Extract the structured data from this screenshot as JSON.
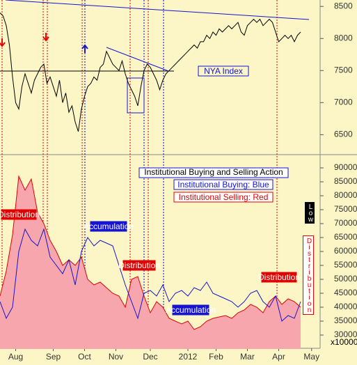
{
  "chart_data": [
    {
      "type": "line",
      "annotations": [
        "NYA Index"
      ],
      "x": [
        0,
        1,
        2,
        3,
        4,
        5,
        6,
        7,
        8,
        9,
        10,
        11,
        12,
        13,
        14,
        15,
        16,
        17,
        18,
        19,
        20,
        21,
        22,
        23,
        24,
        25,
        26,
        27,
        28,
        29,
        30,
        31,
        32,
        33,
        34,
        35,
        36,
        37,
        38,
        39,
        40,
        41,
        42,
        43,
        44,
        45,
        46,
        47,
        48,
        49,
        50,
        51,
        52,
        53,
        54,
        55,
        56,
        57,
        58,
        59,
        60,
        61,
        62,
        63,
        64,
        65,
        66,
        67,
        68,
        69,
        70,
        71,
        72,
        73,
        74,
        75,
        76,
        77,
        78,
        79,
        80,
        81,
        82,
        83,
        84,
        85,
        86,
        87,
        88,
        89,
        90,
        91,
        92,
        93,
        94,
        95,
        96
      ],
      "series": [
        {
          "name": "NYA Index",
          "color": "#000000",
          "values": [
            8400,
            8350,
            8200,
            7900,
            7400,
            7000,
            6900,
            7250,
            7450,
            7300,
            7150,
            7350,
            7450,
            7550,
            7600,
            7300,
            7400,
            7250,
            7100,
            7350,
            7000,
            7150,
            6850,
            6950,
            6700,
            6550,
            6900,
            7100,
            7250,
            7300,
            7400,
            7350,
            7550,
            7600,
            7800,
            7700,
            7600,
            7550,
            7500,
            7650,
            7450,
            7300,
            7200,
            7100,
            6950,
            7250,
            7500,
            7600,
            7550,
            7450,
            7350,
            7200,
            7350,
            7450,
            7500,
            7550,
            7600,
            7650,
            7700,
            7750,
            7800,
            7850,
            7900,
            7850,
            7950,
            7950,
            8050,
            8000,
            8100,
            8050,
            8150,
            8100,
            8150,
            8200,
            8150,
            8200,
            8250,
            8100,
            8050,
            8200,
            8250,
            8300,
            8250,
            8300,
            8200,
            8250,
            8300,
            8250,
            8100,
            7950,
            8000,
            8050,
            8000,
            8050,
            7950,
            8050,
            8100
          ]
        }
      ],
      "xlim": [
        0,
        102
      ],
      "ylim": [
        6200,
        8600
      ],
      "yticks": [
        6500,
        7000,
        7500,
        8000,
        8500
      ]
    },
    {
      "type": "line",
      "title": "Institutional Buying and Selling Action",
      "annotations": [
        "Distribution",
        "Accumulation",
        "Distribution",
        "Accumulation",
        "Distribution"
      ],
      "side_labels": [
        "Low",
        "Distribution"
      ],
      "y_unit_label": "x10000",
      "x": [
        0,
        2,
        4,
        6,
        8,
        10,
        12,
        14,
        16,
        18,
        20,
        22,
        24,
        26,
        28,
        30,
        32,
        34,
        36,
        38,
        40,
        42,
        44,
        46,
        48,
        50,
        52,
        54,
        56,
        58,
        60,
        62,
        64,
        66,
        68,
        70,
        72,
        74,
        76,
        78,
        80,
        82,
        84,
        86,
        88,
        90,
        92,
        94,
        96
      ],
      "series": [
        {
          "name": "Institutional Buying: Blue",
          "color": "#1414d2",
          "values": [
            42000,
            36000,
            40000,
            60000,
            68000,
            64000,
            62000,
            68000,
            58000,
            55000,
            52000,
            57000,
            48000,
            60000,
            65000,
            62000,
            64000,
            63000,
            62000,
            55000,
            48000,
            42000,
            36000,
            45000,
            46000,
            44000,
            48000,
            42000,
            45000,
            46000,
            44000,
            47000,
            46000,
            49000,
            45000,
            44000,
            43000,
            42000,
            40000,
            42000,
            45000,
            46000,
            42000,
            40000,
            44000,
            35000,
            37000,
            36000,
            42000
          ]
        },
        {
          "name": "Institutional Selling: Red",
          "color": "#e00000",
          "fill": "#f6a6ac",
          "values": [
            44000,
            53000,
            66000,
            87000,
            82000,
            86000,
            74000,
            70000,
            64000,
            60000,
            55000,
            57000,
            55000,
            58000,
            50000,
            48000,
            49000,
            47000,
            45000,
            44000,
            40000,
            50000,
            51000,
            44000,
            38000,
            42000,
            40000,
            36000,
            35000,
            34000,
            35000,
            32000,
            33000,
            35000,
            36000,
            36500,
            37000,
            36000,
            38000,
            39000,
            41000,
            40000,
            38000,
            42000,
            44000,
            41000,
            43000,
            42000,
            40000
          ]
        }
      ],
      "xlim": [
        0,
        102
      ],
      "xticks": [
        {
          "value": 5,
          "label": "Aug"
        },
        {
          "value": 17,
          "label": "Sep"
        },
        {
          "value": 27,
          "label": "Oct"
        },
        {
          "value": 37,
          "label": "Nov"
        },
        {
          "value": 48,
          "label": "Dec"
        },
        {
          "value": 60,
          "label": "2012"
        },
        {
          "value": 69,
          "label": "Feb"
        },
        {
          "value": 79,
          "label": "Mar"
        },
        {
          "value": 89,
          "label": "Apr"
        },
        {
          "value": 99.5,
          "label": "May"
        }
      ],
      "ylim": [
        25000,
        94000
      ],
      "yticks": [
        30000,
        35000,
        40000,
        45000,
        50000,
        55000,
        60000,
        65000,
        70000,
        75000,
        80000,
        85000,
        90000
      ]
    }
  ]
}
